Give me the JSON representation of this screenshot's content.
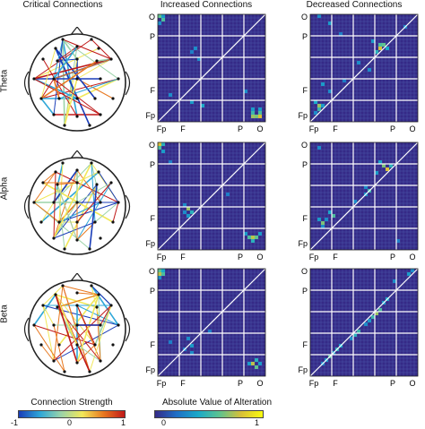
{
  "column_titles": [
    "Critical Connections",
    "Increased Connections",
    "Decreased Connections"
  ],
  "row_labels": [
    "Theta",
    "Alpha",
    "Beta"
  ],
  "matrix_tick_labels": {
    "y": [
      "O",
      "P",
      "F",
      "Fp"
    ],
    "x": [
      "Fp",
      "F",
      "P",
      "O"
    ]
  },
  "colorbars": {
    "connection_strength": {
      "title": "Connection Strength",
      "ticks": [
        "-1",
        "0",
        "1"
      ],
      "colors": [
        "#1a3db8",
        "#2fa7d8",
        "#9bd3a8",
        "#f2e85a",
        "#e8781f",
        "#c01818"
      ]
    },
    "alteration": {
      "title": "Absolute Value of Alteration",
      "ticks": [
        "0",
        "1"
      ],
      "colors": [
        "#352a87",
        "#1f6fc6",
        "#1aa9c9",
        "#5ec38f",
        "#d9c037",
        "#f9fb0e"
      ]
    }
  },
  "chart_data": [
    {
      "type": "heatmap",
      "panel": "Theta - Increased Connections",
      "size": 30,
      "range": [
        0,
        1
      ],
      "cells": [
        [
          0,
          0,
          0.6
        ],
        [
          1,
          1,
          0.55
        ],
        [
          0,
          1,
          0.35
        ],
        [
          2,
          0,
          0.3
        ],
        [
          9,
          10,
          0.3
        ],
        [
          10,
          9,
          0.25
        ],
        [
          12,
          11,
          0.3
        ],
        [
          22,
          3,
          0.3
        ],
        [
          24,
          9,
          0.35
        ],
        [
          25,
          12,
          0.4
        ],
        [
          26,
          26,
          0.35
        ],
        [
          27,
          26,
          0.5
        ],
        [
          28,
          26,
          0.7
        ],
        [
          28,
          28,
          0.8
        ],
        [
          27,
          28,
          0.55
        ],
        [
          28,
          27,
          0.65
        ],
        [
          26,
          28,
          0.35
        ],
        [
          21,
          24,
          0.3
        ]
      ]
    },
    {
      "type": "heatmap",
      "panel": "Theta - Decreased Connections",
      "size": 30,
      "range": [
        0,
        1
      ],
      "cells": [
        [
          0,
          2,
          0.3
        ],
        [
          2,
          5,
          0.35
        ],
        [
          5,
          8,
          0.25
        ],
        [
          7,
          17,
          0.35
        ],
        [
          8,
          19,
          0.55
        ],
        [
          9,
          19,
          0.8
        ],
        [
          8,
          20,
          0.6
        ],
        [
          10,
          18,
          0.45
        ],
        [
          9,
          21,
          0.4
        ],
        [
          13,
          13,
          0.3
        ],
        [
          15,
          16,
          0.3
        ],
        [
          19,
          3,
          0.35
        ],
        [
          21,
          5,
          0.3
        ],
        [
          24,
          1,
          0.4
        ],
        [
          25,
          2,
          0.7
        ],
        [
          26,
          2,
          0.5
        ],
        [
          25,
          3,
          0.35
        ],
        [
          27,
          1,
          0.3
        ],
        [
          3,
          26,
          0.3
        ],
        [
          18,
          9,
          0.25
        ]
      ]
    },
    {
      "type": "heatmap",
      "panel": "Alpha - Increased Connections",
      "size": 30,
      "range": [
        0,
        1
      ],
      "cells": [
        [
          0,
          0,
          0.8
        ],
        [
          1,
          0,
          0.55
        ],
        [
          0,
          1,
          0.45
        ],
        [
          2,
          1,
          0.35
        ],
        [
          5,
          3,
          0.25
        ],
        [
          17,
          7,
          0.3
        ],
        [
          18,
          8,
          0.7
        ],
        [
          19,
          9,
          0.45
        ],
        [
          20,
          8,
          0.35
        ],
        [
          19,
          7,
          0.3
        ],
        [
          14,
          19,
          0.25
        ],
        [
          25,
          24,
          0.35
        ],
        [
          26,
          25,
          0.55
        ],
        [
          26,
          26,
          0.75
        ],
        [
          26,
          27,
          0.6
        ],
        [
          27,
          26,
          0.45
        ],
        [
          25,
          28,
          0.35
        ]
      ]
    },
    {
      "type": "heatmap",
      "panel": "Alpha - Decreased Connections",
      "size": 30,
      "range": [
        0,
        1
      ],
      "cells": [
        [
          1,
          2,
          0.3
        ],
        [
          5,
          19,
          0.4
        ],
        [
          6,
          20,
          0.65
        ],
        [
          7,
          21,
          0.8
        ],
        [
          6,
          22,
          0.45
        ],
        [
          8,
          18,
          0.35
        ],
        [
          12,
          15,
          0.3
        ],
        [
          13,
          16,
          0.5
        ],
        [
          14,
          15,
          0.35
        ],
        [
          16,
          12,
          0.3
        ],
        [
          19,
          5,
          0.4
        ],
        [
          20,
          6,
          0.55
        ],
        [
          21,
          4,
          0.3
        ],
        [
          22,
          3,
          0.65
        ],
        [
          21,
          2,
          0.35
        ],
        [
          23,
          3,
          0.3
        ],
        [
          27,
          24,
          0.25
        ]
      ]
    },
    {
      "type": "heatmap",
      "panel": "Beta - Increased Connections",
      "size": 30,
      "range": [
        0,
        1
      ],
      "cells": [
        [
          0,
          0,
          0.6
        ],
        [
          1,
          0,
          0.75
        ],
        [
          1,
          1,
          0.55
        ],
        [
          0,
          1,
          0.4
        ],
        [
          2,
          0,
          0.3
        ],
        [
          19,
          8,
          0.3
        ],
        [
          21,
          9,
          0.35
        ],
        [
          22,
          7,
          0.25
        ],
        [
          23,
          9,
          0.3
        ],
        [
          17,
          14,
          0.25
        ],
        [
          26,
          25,
          0.35
        ],
        [
          26,
          26,
          0.75
        ],
        [
          27,
          27,
          0.6
        ],
        [
          25,
          27,
          0.45
        ],
        [
          26,
          28,
          0.35
        ],
        [
          20,
          3,
          0.25
        ]
      ]
    },
    {
      "type": "heatmap",
      "panel": "Beta - Decreased Connections",
      "size": 30,
      "range": [
        0,
        1
      ],
      "cells": [
        [
          0,
          28,
          0.3
        ],
        [
          1,
          27,
          0.35
        ],
        [
          3,
          23,
          0.3
        ],
        [
          8,
          21,
          0.4
        ],
        [
          9,
          20,
          0.35
        ],
        [
          11,
          19,
          0.55
        ],
        [
          12,
          18,
          0.7
        ],
        [
          13,
          17,
          0.5
        ],
        [
          14,
          16,
          0.35
        ],
        [
          15,
          15,
          0.3
        ],
        [
          17,
          13,
          0.5
        ],
        [
          18,
          12,
          0.45
        ],
        [
          19,
          11,
          0.3
        ],
        [
          21,
          8,
          0.4
        ],
        [
          22,
          7,
          0.45
        ],
        [
          23,
          6,
          0.35
        ],
        [
          24,
          5,
          0.55
        ],
        [
          25,
          4,
          0.35
        ],
        [
          26,
          3,
          0.3
        ]
      ]
    }
  ]
}
